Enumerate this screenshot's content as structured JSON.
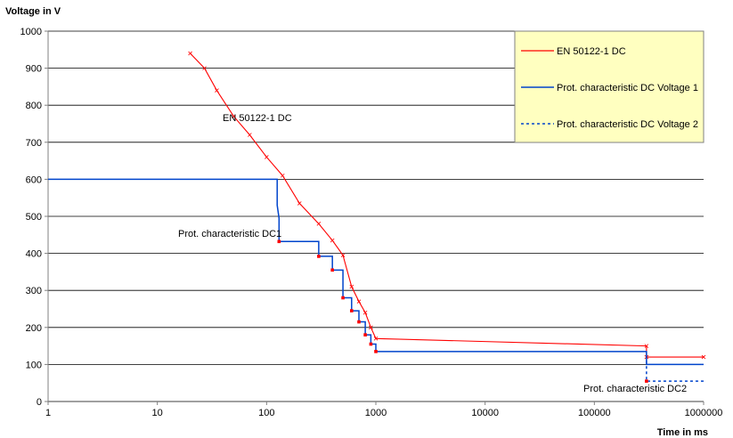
{
  "chart_data": {
    "type": "line",
    "title": "",
    "ylabel": "Voltage in V",
    "xlabel": "Time in ms",
    "x_scale": "log",
    "xlim": [
      1,
      1000000
    ],
    "ylim": [
      0,
      1000
    ],
    "x_ticks": [
      "1",
      "10",
      "100",
      "1000",
      "10000",
      "100000",
      "1000000"
    ],
    "y_ticks": [
      "0",
      "100",
      "200",
      "300",
      "400",
      "500",
      "600",
      "700",
      "800",
      "900",
      "1000"
    ],
    "grid": true,
    "legend_position": "top-right",
    "series": [
      {
        "name": "EN 50122-1 DC",
        "color": "#ff0000",
        "style": "solid",
        "points": [
          {
            "x": 20,
            "y": 940
          },
          {
            "x": 27,
            "y": 900
          },
          {
            "x": 35,
            "y": 840
          },
          {
            "x": 50,
            "y": 770
          },
          {
            "x": 70,
            "y": 720
          },
          {
            "x": 100,
            "y": 660
          },
          {
            "x": 140,
            "y": 610
          },
          {
            "x": 200,
            "y": 535
          },
          {
            "x": 300,
            "y": 480
          },
          {
            "x": 400,
            "y": 435
          },
          {
            "x": 500,
            "y": 395
          },
          {
            "x": 600,
            "y": 310
          },
          {
            "x": 700,
            "y": 270
          },
          {
            "x": 800,
            "y": 240
          },
          {
            "x": 900,
            "y": 200
          },
          {
            "x": 1000,
            "y": 170
          },
          {
            "x": 300000,
            "y": 150
          },
          {
            "x": 300000,
            "y": 120
          },
          {
            "x": 1000000,
            "y": 120
          }
        ]
      },
      {
        "name": "Prot. characteristic DC Voltage 1",
        "color": "#0044cc",
        "style": "solid",
        "points": [
          {
            "x": 1,
            "y": 600
          },
          {
            "x": 125,
            "y": 600
          },
          {
            "x": 125,
            "y": 530
          },
          {
            "x": 130,
            "y": 495
          },
          {
            "x": 130,
            "y": 432
          },
          {
            "x": 300,
            "y": 432
          },
          {
            "x": 300,
            "y": 392
          },
          {
            "x": 400,
            "y": 392
          },
          {
            "x": 400,
            "y": 355
          },
          {
            "x": 500,
            "y": 355
          },
          {
            "x": 500,
            "y": 280
          },
          {
            "x": 600,
            "y": 280
          },
          {
            "x": 600,
            "y": 245
          },
          {
            "x": 700,
            "y": 245
          },
          {
            "x": 700,
            "y": 215
          },
          {
            "x": 800,
            "y": 215
          },
          {
            "x": 800,
            "y": 180
          },
          {
            "x": 900,
            "y": 180
          },
          {
            "x": 900,
            "y": 155
          },
          {
            "x": 1000,
            "y": 155
          },
          {
            "x": 1000,
            "y": 135
          },
          {
            "x": 300000,
            "y": 135
          },
          {
            "x": 300000,
            "y": 100
          },
          {
            "x": 1000000,
            "y": 100
          }
        ]
      },
      {
        "name": "Prot. characteristic DC Voltage 2",
        "color": "#0044cc",
        "style": "dashed",
        "points": [
          {
            "x": 300000,
            "y": 110
          },
          {
            "x": 300000,
            "y": 55
          },
          {
            "x": 1000000,
            "y": 55
          }
        ]
      }
    ],
    "red_markers": [
      {
        "x": 130,
        "y": 432
      },
      {
        "x": 300,
        "y": 392
      },
      {
        "x": 400,
        "y": 355
      },
      {
        "x": 500,
        "y": 280
      },
      {
        "x": 600,
        "y": 245
      },
      {
        "x": 700,
        "y": 215
      },
      {
        "x": 800,
        "y": 180
      },
      {
        "x": 900,
        "y": 155
      },
      {
        "x": 1000,
        "y": 135
      },
      {
        "x": 300000,
        "y": 55
      }
    ],
    "annotations": [
      {
        "text": "EN 50122-1 DC"
      },
      {
        "text": "Prot. characteristic DC1"
      },
      {
        "text": "Prot. characteristic DC2"
      }
    ],
    "legend": [
      {
        "label": "EN 50122-1 DC"
      },
      {
        "label": "Prot. characteristic DC Voltage 1"
      },
      {
        "label": "Prot. characteristic DC Voltage 2"
      }
    ],
    "legend_bg": "#ffffc0"
  }
}
